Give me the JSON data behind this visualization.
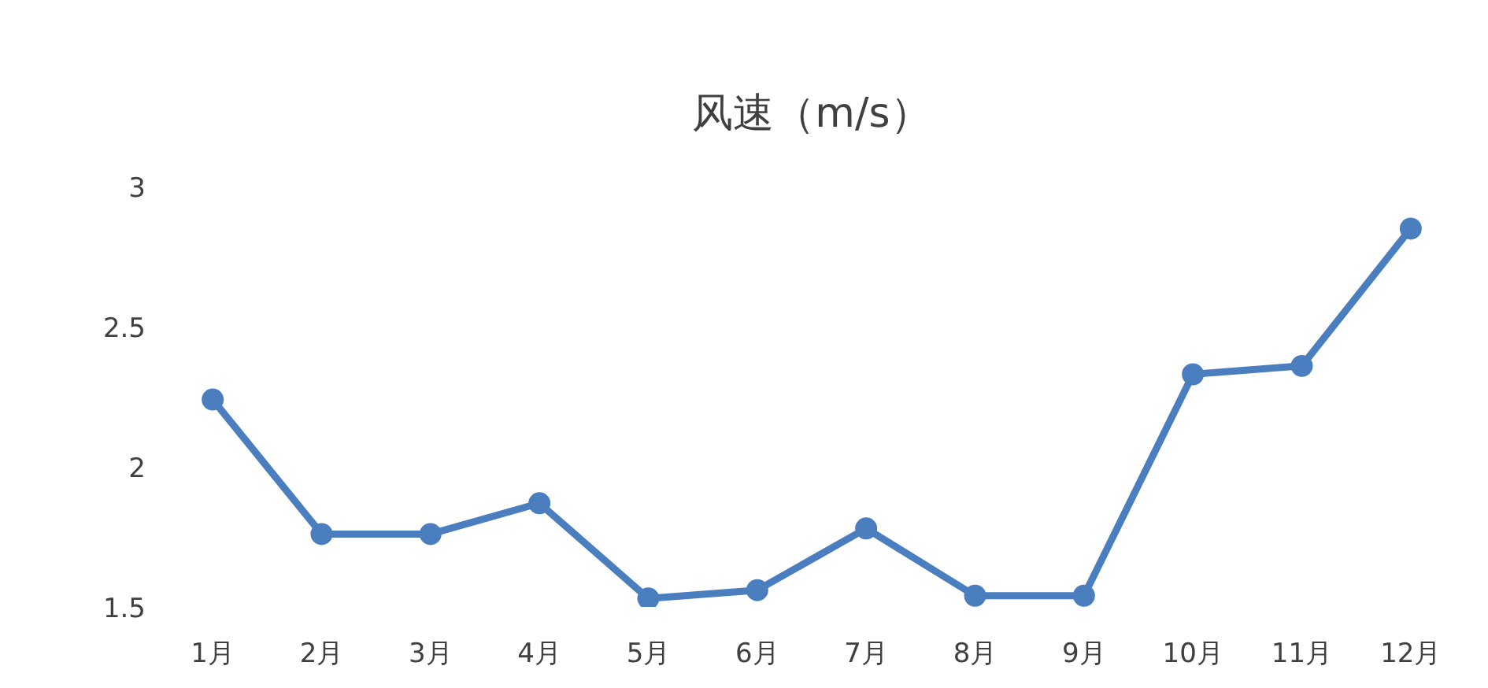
{
  "chart_data": {
    "type": "line",
    "title": "风速（m/s）",
    "categories": [
      "1月",
      "2月",
      "3月",
      "4月",
      "5月",
      "6月",
      "7月",
      "8月",
      "9月",
      "10月",
      "11月",
      "12月"
    ],
    "series": [
      {
        "color": "#4a7ebf",
        "values": [
          2.24,
          1.76,
          1.76,
          1.87,
          1.53,
          1.56,
          1.78,
          1.54,
          1.54,
          2.33,
          2.36,
          2.85
        ]
      }
    ],
    "ylim": [
      1.5,
      3
    ],
    "yticks": [
      1.5,
      2,
      2.5,
      3
    ],
    "grid": false,
    "legend": false,
    "marker": "circle",
    "line_style": "solid"
  }
}
